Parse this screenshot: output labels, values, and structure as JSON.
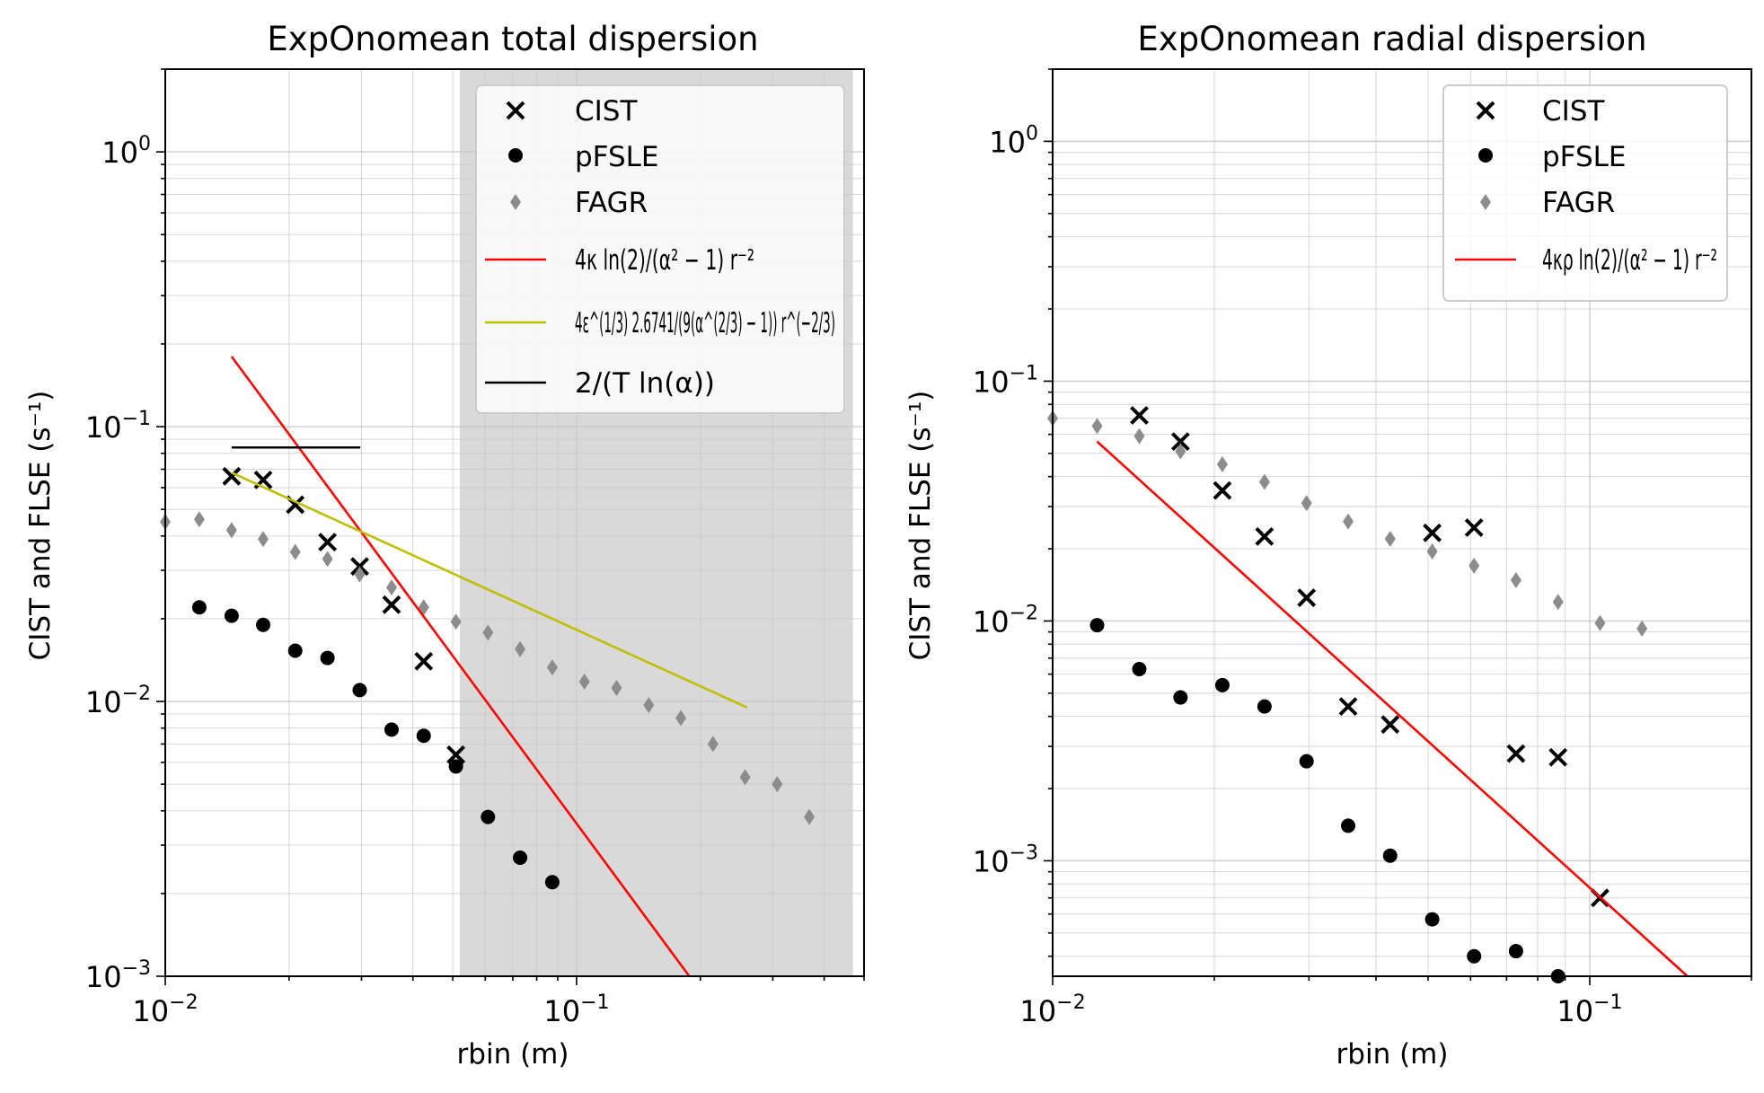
{
  "chart_data": [
    {
      "type": "scatter",
      "title": "ExpOnomean total dispersion",
      "xlabel": "rbin (m)",
      "ylabel": "CIST and FLSE (s⁻¹)",
      "xscale": "log",
      "yscale": "log",
      "xlim": [
        0.01,
        0.5
      ],
      "ylim": [
        0.001,
        2.0
      ],
      "xticks": [
        {
          "value": 0.01,
          "base": "10",
          "exp": "−2"
        },
        {
          "value": 0.1,
          "base": "10",
          "exp": "−1"
        }
      ],
      "yticks": [
        {
          "value": 0.001,
          "base": "10",
          "exp": "−3"
        },
        {
          "value": 0.01,
          "base": "10",
          "exp": "−2"
        },
        {
          "value": 0.1,
          "base": "10",
          "exp": "−1"
        },
        {
          "value": 1,
          "base": "10",
          "exp": "0"
        }
      ],
      "grid": true,
      "legend_position": "top-right",
      "shaded_region": {
        "x0": 0.052,
        "x1": 0.47,
        "color": "#d9d9d9"
      },
      "series": [
        {
          "name": "CIST",
          "marker": "x",
          "color": "#000000",
          "x": [
            0.0145,
            0.0173,
            0.0207,
            0.0248,
            0.0297,
            0.0355,
            0.0425,
            0.0509
          ],
          "y": [
            0.066,
            0.064,
            0.052,
            0.038,
            0.031,
            0.0225,
            0.014,
            0.0064
          ]
        },
        {
          "name": "pFSLE",
          "marker": "circle",
          "color": "#000000",
          "x": [
            0.0121,
            0.0145,
            0.0173,
            0.0207,
            0.0248,
            0.0297,
            0.0355,
            0.0425,
            0.0509,
            0.0609,
            0.0729,
            0.0873
          ],
          "y": [
            0.022,
            0.0205,
            0.019,
            0.0153,
            0.0144,
            0.011,
            0.0079,
            0.0075,
            0.0058,
            0.0038,
            0.0027,
            0.0022
          ]
        },
        {
          "name": "FAGR",
          "marker": "diamond",
          "color": "#8c8c8c",
          "x": [
            0.01,
            0.0121,
            0.0145,
            0.0173,
            0.0207,
            0.0248,
            0.0297,
            0.0355,
            0.0425,
            0.0509,
            0.0609,
            0.0729,
            0.0873,
            0.1045,
            0.1251,
            0.1498,
            0.1793,
            0.2146,
            0.2569,
            0.3075,
            0.368
          ],
          "y": [
            0.045,
            0.046,
            0.042,
            0.039,
            0.035,
            0.033,
            0.029,
            0.026,
            0.022,
            0.0195,
            0.0178,
            0.0155,
            0.0133,
            0.0118,
            0.0112,
            0.0097,
            0.0087,
            0.007,
            0.0053,
            0.005,
            0.0038
          ]
        },
        {
          "name": "red",
          "type": "line",
          "color": "#ff0000",
          "x": [
            0.0145,
            0.188
          ],
          "y": [
            0.18,
            0.001
          ]
        },
        {
          "name": "olive",
          "type": "line",
          "color": "#bfbf00",
          "x": [
            0.0145,
            0.26
          ],
          "y": [
            0.068,
            0.0095
          ]
        },
        {
          "name": "black",
          "type": "line",
          "color": "#000000",
          "x": [
            0.0145,
            0.0298
          ],
          "y": [
            0.084,
            0.084
          ]
        }
      ],
      "legend": [
        {
          "key": "cist",
          "marker": "x",
          "label": "CIST"
        },
        {
          "key": "pfsle",
          "marker": "circle",
          "label": "pFSLE"
        },
        {
          "key": "fagr",
          "marker": "diamond",
          "label": "FAGR"
        },
        {
          "key": "red",
          "marker": "line",
          "color": "#ff0000",
          "label": "4κ ln(2)/(α² − 1) r⁻²"
        },
        {
          "key": "olive",
          "marker": "line",
          "color": "#bfbf00",
          "label": "4ε^(1/3) 2.6741/(9(α^(2/3) − 1)) r^(−2/3)"
        },
        {
          "key": "black",
          "marker": "line",
          "color": "#000000",
          "label": "2/(T ln(α))"
        }
      ]
    },
    {
      "type": "scatter",
      "title": "ExpOnomean radial dispersion",
      "xlabel": "rbin (m)",
      "ylabel": "CIST and FLSE (s⁻¹)",
      "xscale": "log",
      "yscale": "log",
      "xlim": [
        0.01,
        0.2
      ],
      "ylim": [
        0.00033,
        2.0
      ],
      "xticks": [
        {
          "value": 0.01,
          "base": "10",
          "exp": "−2"
        },
        {
          "value": 0.1,
          "base": "10",
          "exp": "−1"
        }
      ],
      "yticks": [
        {
          "value": 0.001,
          "base": "10",
          "exp": "−3"
        },
        {
          "value": 0.01,
          "base": "10",
          "exp": "−2"
        },
        {
          "value": 0.1,
          "base": "10",
          "exp": "−1"
        },
        {
          "value": 1,
          "base": "10",
          "exp": "0"
        }
      ],
      "grid": true,
      "legend_position": "top-right",
      "series": [
        {
          "name": "CIST",
          "marker": "x",
          "color": "#000000",
          "x": [
            0.0145,
            0.0173,
            0.0207,
            0.0248,
            0.0297,
            0.0355,
            0.0425,
            0.0509,
            0.0609,
            0.0729,
            0.0873,
            0.1045
          ],
          "y": [
            0.072,
            0.056,
            0.035,
            0.0225,
            0.0125,
            0.0044,
            0.0037,
            0.0233,
            0.0245,
            0.0028,
            0.0027,
            0.0007
          ]
        },
        {
          "name": "pFSLE",
          "marker": "circle",
          "color": "#000000",
          "x": [
            0.0121,
            0.0145,
            0.0173,
            0.0207,
            0.0248,
            0.0297,
            0.0355,
            0.0425,
            0.0509,
            0.0609,
            0.0729,
            0.0873
          ],
          "y": [
            0.0096,
            0.0063,
            0.0048,
            0.0054,
            0.0044,
            0.0026,
            0.0014,
            0.00105,
            0.00057,
            0.0004,
            0.00042,
            0.00033
          ]
        },
        {
          "name": "FAGR",
          "marker": "diamond",
          "color": "#8c8c8c",
          "x": [
            0.01,
            0.0121,
            0.0145,
            0.0173,
            0.0207,
            0.0248,
            0.0297,
            0.0355,
            0.0425,
            0.0509,
            0.0609,
            0.0729,
            0.0873,
            0.1045,
            0.1251
          ],
          "y": [
            0.07,
            0.065,
            0.059,
            0.051,
            0.045,
            0.038,
            0.031,
            0.026,
            0.022,
            0.0195,
            0.017,
            0.0148,
            0.012,
            0.0098,
            0.0093
          ]
        },
        {
          "name": "red",
          "type": "line",
          "color": "#ff0000",
          "x": [
            0.0121,
            0.152
          ],
          "y": [
            0.056,
            0.00033
          ]
        }
      ],
      "legend": [
        {
          "key": "cist",
          "marker": "x",
          "label": "CIST"
        },
        {
          "key": "pfsle",
          "marker": "circle",
          "label": "pFSLE"
        },
        {
          "key": "fagr",
          "marker": "diamond",
          "label": "FAGR"
        },
        {
          "key": "red",
          "marker": "line",
          "color": "#ff0000",
          "label": "4κρ ln(2)/(α² − 1) r⁻²"
        }
      ]
    }
  ]
}
